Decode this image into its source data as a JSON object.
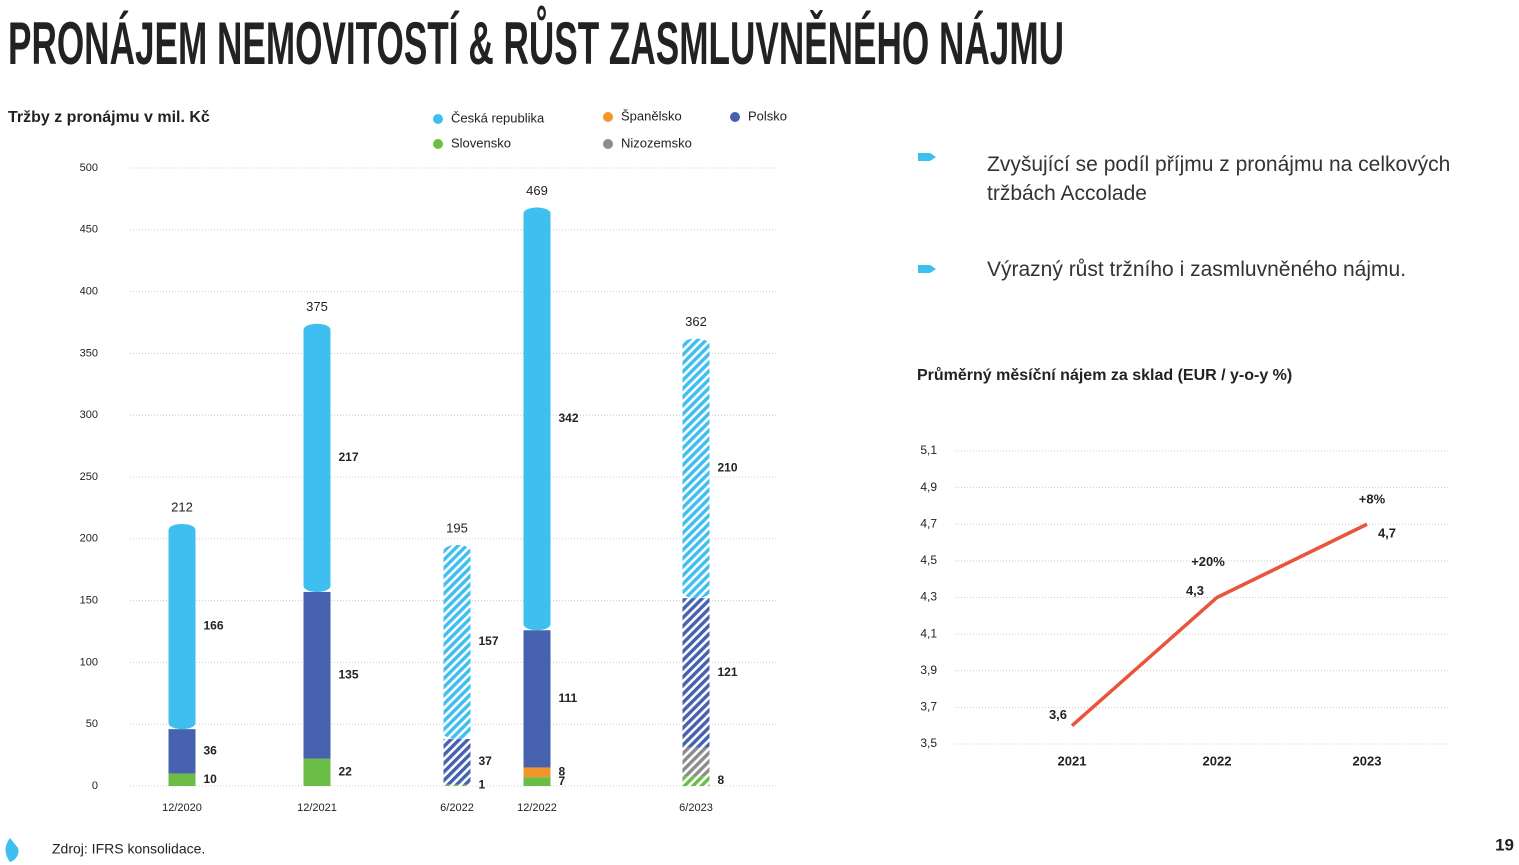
{
  "header": {
    "title": "PRONÁJEM NEMOVITOSTÍ & RŮST ZASMLUVNĚNÉHO NÁJMU"
  },
  "chart_data": [
    {
      "type": "stacked_bar",
      "title": "Tržby z pronájmu v mil. Kč",
      "categories": [
        "12/2020",
        "12/2021",
        "6/2022",
        "12/2022",
        "6/2023"
      ],
      "series": [
        {
          "name": "Slovensko",
          "color": "#6cbd45",
          "label_color": "#6cbd45",
          "values": [
            10,
            22,
            1,
            7,
            8
          ]
        },
        {
          "name": "Španělsko",
          "color": "#f0962a",
          "label_color": "#f0962a",
          "values": [
            null,
            null,
            null,
            8,
            null
          ]
        },
        {
          "name": "Nizozemsko",
          "color": "#8c8c8c",
          "label_color": "#8c8c8c",
          "show_labels": false,
          "values": [
            null,
            null,
            null,
            null,
            23
          ]
        },
        {
          "name": "Polsko",
          "color": "#4661ad",
          "label_color": "#2f4a8c",
          "values": [
            36,
            135,
            37,
            111,
            121
          ]
        },
        {
          "name": "Česká republika",
          "color": "#3fbfef",
          "label_color": "#3fbfef",
          "values": [
            166,
            217,
            157,
            342,
            210
          ]
        }
      ],
      "totals": [
        212,
        375,
        195,
        469,
        362
      ],
      "hatched": [
        false,
        false,
        true,
        false,
        true
      ],
      "ylim": [
        0,
        500
      ],
      "yticks": [
        0,
        50,
        100,
        150,
        200,
        250,
        300,
        350,
        400,
        450,
        500
      ],
      "grid": true
    },
    {
      "type": "line",
      "title": "Průměrný měsíční nájem za sklad (EUR /  y-o-y %)",
      "categories": [
        "2021",
        "2022",
        "2023"
      ],
      "values": [
        3.6,
        4.3,
        4.7
      ],
      "value_labels": [
        "3,6",
        "4,3",
        "4,7"
      ],
      "change_labels": [
        null,
        "+20%",
        "+8%"
      ],
      "color": "#e8553b",
      "label_color": "#2f5f8a",
      "ylim": [
        3.5,
        5.1
      ],
      "yticks": [
        {
          "value": 3.5,
          "label": "3,5"
        },
        {
          "value": 3.7,
          "label": "3,7"
        },
        {
          "value": 3.9,
          "label": "3,9"
        },
        {
          "value": 4.1,
          "label": "4,1"
        },
        {
          "value": 4.3,
          "label": "4,3"
        },
        {
          "value": 4.5,
          "label": "4,5"
        },
        {
          "value": 4.7,
          "label": "4,7"
        },
        {
          "value": 4.9,
          "label": "4,9"
        },
        {
          "value": 5.1,
          "label": "5,1"
        }
      ],
      "grid": true
    }
  ],
  "bullets": [
    "Zvyšující se podíl příjmu z pronájmu na celkových tržbách Accolade",
    "Výrazný růst tržního i zasmluvněného nájmu."
  ],
  "footer": {
    "source": "Zdroj: IFRS konsolidace.",
    "page": "19"
  }
}
